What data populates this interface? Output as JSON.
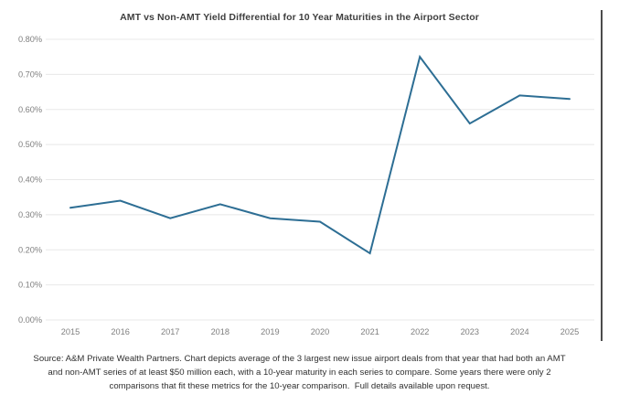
{
  "chart_data": {
    "type": "line",
    "title": "AMT vs Non-AMT Yield Differential for 10 Year Maturities in the Airport Sector",
    "xlabel": "",
    "ylabel": "",
    "categories": [
      "2015",
      "2016",
      "2017",
      "2018",
      "2019",
      "2020",
      "2021",
      "2022",
      "2023",
      "2024",
      "2025"
    ],
    "series": [
      {
        "values": [
          0.32,
          0.34,
          0.29,
          0.33,
          0.29,
          0.28,
          0.19,
          0.75,
          0.56,
          0.64,
          0.63
        ]
      }
    ],
    "ylim": [
      0,
      0.8
    ],
    "y_tick_values": [
      0,
      0.1,
      0.2,
      0.3,
      0.4,
      0.5,
      0.6,
      0.7,
      0.8
    ],
    "y_tick_labels": [
      "0.00%",
      "0.10%",
      "0.20%",
      "0.30%",
      "0.40%",
      "0.50%",
      "0.60%",
      "0.70%",
      "0.80%"
    ],
    "grid": true,
    "legend": "none",
    "colors": {
      "line": "#2D6E94",
      "gridline": "#E8E8E8",
      "tick_label": "#7F7F7F",
      "title": "#3F3F3F",
      "right_border": "#000000",
      "source_text": "#303030",
      "background": "#FFFFFF"
    }
  },
  "source_note": {
    "lines": [
      "Source: A&M Private Wealth Partners. Chart depicts average of the 3 largest new issue airport deals from that year that had both an AMT",
      "and non-AMT series of at least $50 million each, with a 10-year maturity in each series to compare. Some years there were only 2",
      "comparisons that fit these metrics for the 10-year comparison.  Full details available upon request."
    ]
  }
}
